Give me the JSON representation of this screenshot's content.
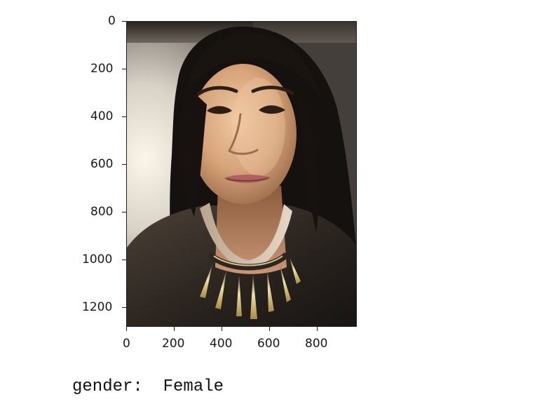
{
  "figure": {
    "y_ticks": [
      "0",
      "200",
      "400",
      "600",
      "800",
      "1000",
      "1200"
    ],
    "x_ticks": [
      "0",
      "200",
      "400",
      "600",
      "800"
    ],
    "photo_subject": "selfie-photo"
  },
  "output": {
    "text": "gender:  Female"
  }
}
